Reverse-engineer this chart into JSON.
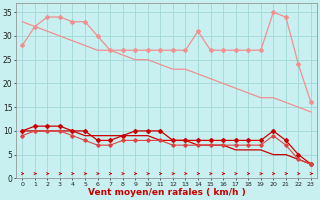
{
  "x": [
    0,
    1,
    2,
    3,
    4,
    5,
    6,
    7,
    8,
    9,
    10,
    11,
    12,
    13,
    14,
    15,
    16,
    17,
    18,
    19,
    20,
    21,
    22,
    23
  ],
  "rafales_max": [
    28,
    32,
    34,
    34,
    33,
    33,
    30,
    27,
    27,
    27,
    27,
    27,
    27,
    27,
    31,
    27,
    27,
    27,
    27,
    27,
    35,
    34,
    24,
    16
  ],
  "rafales_trend": [
    33,
    32,
    31,
    30,
    29,
    28,
    27,
    27,
    26,
    25,
    25,
    24,
    23,
    23,
    22,
    21,
    20,
    19,
    18,
    17,
    17,
    16,
    15,
    14
  ],
  "vent_moyen": [
    10,
    11,
    11,
    11,
    10,
    10,
    8,
    8,
    9,
    10,
    10,
    10,
    8,
    8,
    8,
    8,
    8,
    8,
    8,
    8,
    10,
    8,
    5,
    3
  ],
  "vent_trend": [
    10,
    10,
    10,
    10,
    10,
    9,
    9,
    9,
    9,
    9,
    9,
    8,
    8,
    8,
    7,
    7,
    7,
    6,
    6,
    6,
    5,
    5,
    4,
    3
  ],
  "vent_min": [
    9,
    10,
    10,
    10,
    9,
    8,
    7,
    7,
    8,
    8,
    8,
    8,
    7,
    7,
    7,
    7,
    7,
    7,
    7,
    7,
    9,
    7,
    4,
    3
  ],
  "color_light_pink": "#f09090",
  "color_dark_red": "#cc0000",
  "color_medium_red": "#dd4444",
  "background": "#c8f0f0",
  "grid_color": "#a8dada",
  "xlabel": "Vent moyen/en rafales ( km/h )",
  "xlabel_color": "#cc0000",
  "ylim": [
    0,
    37
  ],
  "yticks": [
    0,
    5,
    10,
    15,
    20,
    25,
    30,
    35
  ]
}
